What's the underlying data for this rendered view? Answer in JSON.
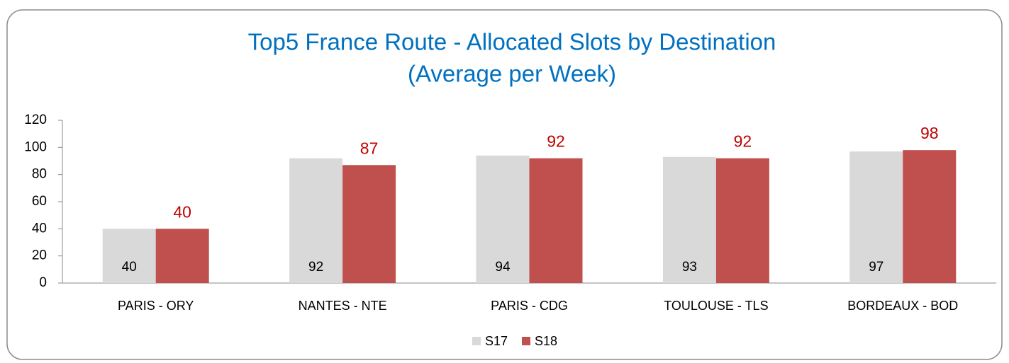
{
  "chart_data": {
    "type": "bar",
    "title": [
      "Top5 France Route - Allocated Slots by Destination",
      "(Average per Week)"
    ],
    "categories": [
      "PARIS - ORY",
      "NANTES - NTE",
      "PARIS - CDG",
      "TOULOUSE - TLS",
      "BORDEAUX - BOD"
    ],
    "series": [
      {
        "name": "S17",
        "color": "#d9d9d9",
        "label_color": "#000000",
        "label_position": "inside-base",
        "values": [
          40,
          92,
          94,
          93,
          97
        ]
      },
      {
        "name": "S18",
        "color": "#c0504d",
        "label_color": "#c00000",
        "label_position": "outside-end",
        "values": [
          40,
          87,
          92,
          92,
          98
        ]
      }
    ],
    "ylim": [
      0,
      120
    ],
    "yticks": [
      0,
      20,
      40,
      60,
      80,
      100,
      120
    ],
    "grid": false,
    "legend": "bottom"
  }
}
